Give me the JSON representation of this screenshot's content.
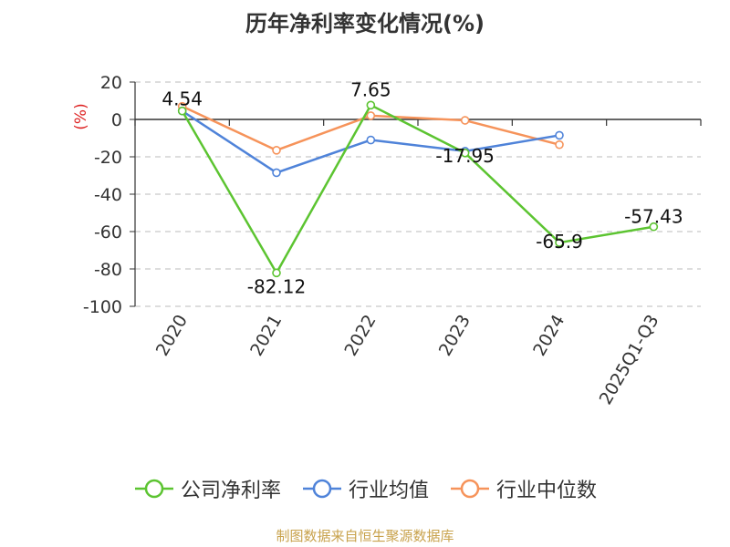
{
  "chart_data": {
    "type": "line",
    "title": "历年净利率变化情况(%)",
    "ylabel": "(%)",
    "xlabel": "",
    "categories": [
      "2020",
      "2021",
      "2022",
      "2023",
      "2024",
      "2025Q1-Q3"
    ],
    "ylim": [
      -100,
      20
    ],
    "yticks": [
      20,
      0,
      -20,
      -40,
      -60,
      -80,
      -100
    ],
    "grid": true,
    "legend_position": "bottom",
    "series": [
      {
        "name": "公司净利率",
        "color": "#5cc431",
        "values": [
          4.54,
          -82.12,
          7.65,
          -17.95,
          -65.9,
          -57.43
        ],
        "labels": [
          "4.54",
          "-82.12",
          "7.65",
          "-17.95",
          "-65.9",
          "-57.43"
        ]
      },
      {
        "name": "行业均值",
        "color": "#4f83d9",
        "values": [
          4.5,
          -28.5,
          -11,
          -17,
          -8.5,
          null
        ]
      },
      {
        "name": "行业中位数",
        "color": "#f6935a",
        "values": [
          7,
          -16.5,
          2,
          -0.5,
          -13.5,
          null
        ]
      }
    ]
  },
  "source": "制图数据来自恒生聚源数据库"
}
